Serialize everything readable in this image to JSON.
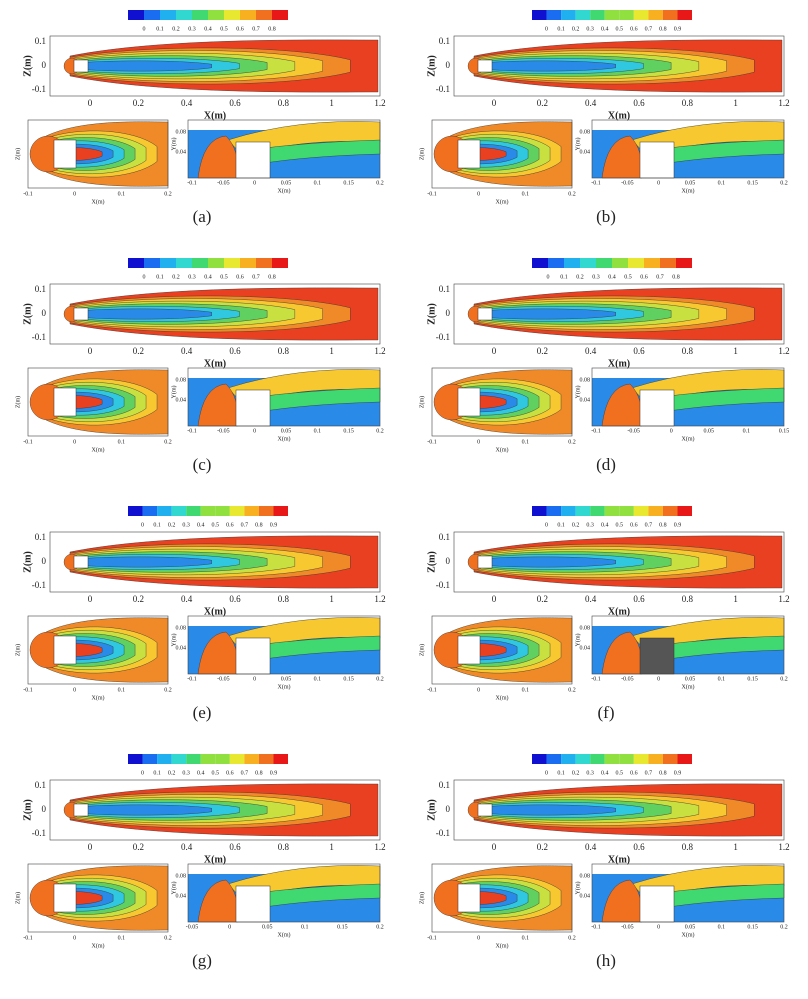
{
  "panels": [
    {
      "label": "(a)",
      "colorbar": [
        "0",
        "0.1",
        "0.2",
        "0.3",
        "0.4",
        "0.5",
        "0.6",
        "0.7",
        "0.8"
      ],
      "main": {
        "x_label": "X(m)",
        "y_label": "Z(m)",
        "xticks": [
          "0",
          "0.2",
          "0.4",
          "0.6",
          "0.8",
          "1",
          "1.2"
        ],
        "yticks": [
          "0.1",
          "0",
          "-0.1"
        ]
      },
      "left": {
        "x_label": "X(m)",
        "y_label": "Z(m)",
        "xticks": [
          "-0.1",
          "0",
          "0.1",
          "0.2"
        ]
      },
      "right": {
        "x_label": "X(m)",
        "y_label": "Y(m)",
        "xticks": [
          "-0.1",
          "-0.05",
          "0",
          "0.05",
          "0.1",
          "0.15",
          "0.2"
        ],
        "yticks": [
          "0.08",
          "0.04"
        ]
      }
    },
    {
      "label": "(b)",
      "colorbar": [
        "0",
        "0.1",
        "0.2",
        "0.3",
        "0.4",
        "0.5",
        "0.6",
        "0.7",
        "0.8",
        "0.9"
      ],
      "main": {
        "x_label": "X(m)",
        "y_label": "Z(m)",
        "xticks": [
          "0",
          "0.2",
          "0.4",
          "0.6",
          "0.8",
          "1",
          "1.2"
        ],
        "yticks": [
          "0.1",
          "0",
          "-0.1"
        ]
      },
      "left": {
        "x_label": "X(m)",
        "y_label": "Z(m)",
        "xticks": [
          "-0.1",
          "0",
          "0.1",
          "0.2"
        ]
      },
      "right": {
        "x_label": "X(m)",
        "y_label": "Y(m)",
        "xticks": [
          "-0.1",
          "-0.05",
          "0",
          "0.05",
          "0.1",
          "0.15",
          "0.2"
        ],
        "yticks": [
          "0.08",
          "0.04"
        ]
      }
    },
    {
      "label": "(c)",
      "colorbar": [
        "0",
        "0.1",
        "0.2",
        "0.3",
        "0.4",
        "0.5",
        "0.6",
        "0.7",
        "0.8"
      ],
      "main": {
        "x_label": "X(m)",
        "y_label": "Z(m)",
        "xticks": [
          "0",
          "0.2",
          "0.4",
          "0.6",
          "0.8",
          "1",
          "1.2"
        ],
        "yticks": [
          "0.1",
          "0",
          "-0.1"
        ]
      },
      "left": {
        "x_label": "X(m)",
        "y_label": "Z(m)",
        "xticks": [
          "-0.1",
          "0",
          "0.1",
          "0.2"
        ]
      },
      "right": {
        "x_label": "X(m)",
        "y_label": "Y(m)",
        "xticks": [
          "-0.1",
          "-0.05",
          "0",
          "0.05",
          "0.1",
          "0.15",
          "0.2"
        ],
        "yticks": [
          "0.08",
          "0.04"
        ]
      }
    },
    {
      "label": "(d)",
      "colorbar": [
        "0",
        "0.1",
        "0.2",
        "0.3",
        "0.4",
        "0.5",
        "0.6",
        "0.7",
        "0.8"
      ],
      "main": {
        "x_label": "X(m)",
        "y_label": "Z(m)",
        "xticks": [
          "0",
          "0.2",
          "0.4",
          "0.6",
          "0.8",
          "1",
          "1.2"
        ],
        "yticks": [
          "0.1",
          "0",
          "-0.1"
        ]
      },
      "left": {
        "x_label": "X(m)",
        "y_label": "Z(m)",
        "xticks": [
          "-0.1",
          "0",
          "0.1",
          "0.2"
        ]
      },
      "right": {
        "x_label": "X(m)",
        "y_label": "Y(m)",
        "xticks": [
          "-0.1",
          "-0.05",
          "0",
          "0.05",
          "0.1",
          "0.15"
        ],
        "yticks": [
          "0.08",
          "0.04"
        ]
      }
    },
    {
      "label": "(e)",
      "colorbar": [
        "0",
        "0.1",
        "0.2",
        "0.3",
        "0.4",
        "0.5",
        "0.6",
        "0.7",
        "0.8",
        "0.9"
      ],
      "main": {
        "x_label": "X(m)",
        "y_label": "Z(m)",
        "xticks": [
          "0",
          "0.2",
          "0.4",
          "0.6",
          "0.8",
          "1",
          "1.2"
        ],
        "yticks": [
          "0.1",
          "0",
          "-0.1"
        ]
      },
      "left": {
        "x_label": "X(m)",
        "y_label": "Z(m)",
        "xticks": [
          "-0.1",
          "0",
          "0.1",
          "0.2"
        ]
      },
      "right": {
        "x_label": "X(m)",
        "y_label": "Y(m)",
        "xticks": [
          "-0.1",
          "-0.05",
          "0",
          "0.05",
          "0.1",
          "0.15",
          "0.2"
        ],
        "yticks": [
          "0.08",
          "0.04"
        ]
      }
    },
    {
      "label": "(f)",
      "colorbar": [
        "0",
        "0.1",
        "0.2",
        "0.3",
        "0.4",
        "0.5",
        "0.6",
        "0.7",
        "0.8",
        "0.9"
      ],
      "main": {
        "x_label": "X(m)",
        "y_label": "Z(m)",
        "xticks": [
          "0",
          "0.2",
          "0.4",
          "0.6",
          "0.8",
          "1",
          "1.2"
        ],
        "yticks": [
          "0.1",
          "0",
          "-0.1"
        ]
      },
      "left": {
        "x_label": "X(m)",
        "y_label": "Z(m)",
        "xticks": [
          "-0.1",
          "0",
          "0.1",
          "0.2"
        ]
      },
      "right": {
        "x_label": "X(m)",
        "y_label": "Y(m)",
        "xticks": [
          "-0.1",
          "-0.05",
          "0",
          "0.05",
          "0.1",
          "0.15",
          "0.2"
        ],
        "yticks": [
          "0.08",
          "0.04"
        ]
      }
    },
    {
      "label": "(g)",
      "colorbar": [
        "0",
        "0.1",
        "0.2",
        "0.3",
        "0.4",
        "0.5",
        "0.6",
        "0.7",
        "0.8",
        "0.9"
      ],
      "main": {
        "x_label": "X(m)",
        "y_label": "Z(m)",
        "xticks": [
          "0",
          "0.2",
          "0.4",
          "0.6",
          "0.8",
          "1",
          "1.2"
        ],
        "yticks": [
          "0.1",
          "0",
          "-0.1"
        ]
      },
      "left": {
        "x_label": "X(m)",
        "y_label": "Z(m)",
        "xticks": [
          "-0.1",
          "0",
          "0.1",
          "0.2"
        ]
      },
      "right": {
        "x_label": "X(m)",
        "y_label": "Y(m)",
        "xticks": [
          "-0.05",
          "0",
          "0.05",
          "0.1",
          "0.15",
          "0.2"
        ],
        "yticks": [
          "0.08",
          "0.04"
        ]
      }
    },
    {
      "label": "(h)",
      "colorbar": [
        "0",
        "0.1",
        "0.2",
        "0.3",
        "0.4",
        "0.5",
        "0.6",
        "0.7",
        "0.8",
        "0.9"
      ],
      "main": {
        "x_label": "X(m)",
        "y_label": "Z(m)",
        "xticks": [
          "0",
          "0.2",
          "0.4",
          "0.6",
          "0.8",
          "1",
          "1.2"
        ],
        "yticks": [
          "0.1",
          "0",
          "-0.1"
        ]
      },
      "left": {
        "x_label": "X(m)",
        "y_label": "Z(m)",
        "xticks": [
          "-0.1",
          "0",
          "0.1",
          "0.2"
        ]
      },
      "right": {
        "x_label": "X(m)",
        "y_label": "Y(m)",
        "xticks": [
          "-0.1",
          "-0.05",
          "0",
          "0.05",
          "0.1",
          "0.15",
          "0.2"
        ],
        "yticks": [
          "0.08",
          "0.04"
        ]
      }
    }
  ]
}
